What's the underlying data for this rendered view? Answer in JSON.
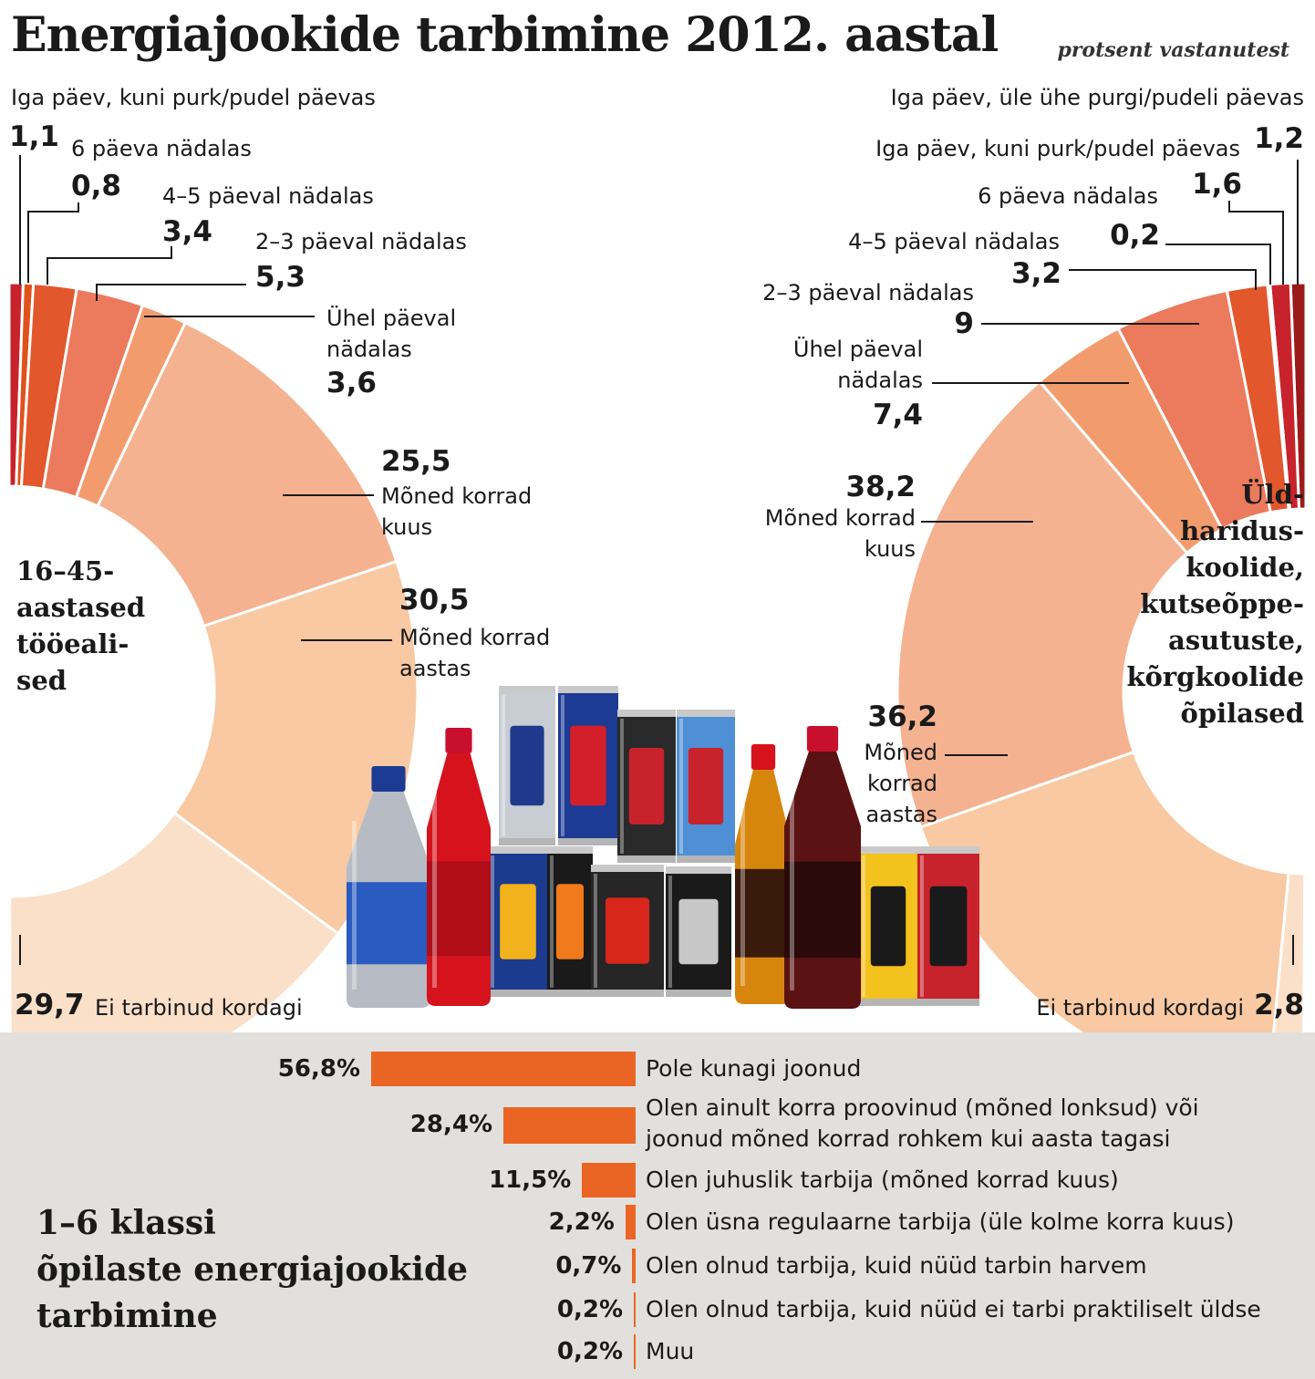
{
  "title": "Energiajookide tarbimine 2012. aastal",
  "subtitle": "protsent vastanutest",
  "colors": {
    "daily_more": "#9c1a1a",
    "daily": "#c8232c",
    "six_days": "#e0521c",
    "four_five": "#e2572c",
    "two_three": "#ec7a5c",
    "one_day": "#f29c6e",
    "few_month": "#f5b290",
    "few_year": "#f8c9a2",
    "never": "#fbe0c9",
    "bar": "#ea6524",
    "bottom_bg": "#e2e0dc"
  },
  "chart_data": [
    {
      "type": "pie",
      "group": "16–45-aastased tööealised",
      "group_label_lines": [
        "16–45-",
        "aastased",
        "tööeali-",
        "sed"
      ],
      "slices": [
        {
          "label": "Iga päev, kuni purk/pudel päevas",
          "value": 1.1,
          "value_text": "1,1"
        },
        {
          "label": "6 päeva nädalas",
          "value": 0.8,
          "value_text": "0,8"
        },
        {
          "label": "4–5 päeval nädalas",
          "value": 3.4,
          "value_text": "3,4"
        },
        {
          "label": "2–3 päeval nädalas",
          "value": 5.3,
          "value_text": "5,3"
        },
        {
          "label": "Ühel päeval nädalas",
          "label_lines": [
            "Ühel päeval",
            "nädalas"
          ],
          "value": 3.6,
          "value_text": "3,6"
        },
        {
          "label": "Mõned korrad kuus",
          "label_lines": [
            "Mõned korrad",
            "kuus"
          ],
          "value": 25.5,
          "value_text": "25,5"
        },
        {
          "label": "Mõned korrad aastas",
          "label_lines": [
            "Mõned korrad",
            "aastas"
          ],
          "value": 30.5,
          "value_text": "30,5"
        },
        {
          "label": "Ei tarbinud kordagi",
          "value": 29.7,
          "value_text": "29,7"
        }
      ]
    },
    {
      "type": "pie",
      "group": "Üldhariduskoolide, kutseõppeasutuste, kõrgkoolide õpilased",
      "group_label_lines": [
        "Üld-",
        "haridus-",
        "koolide,",
        "kutseõppe-",
        "asutuste,",
        "kõrgkoolide",
        "õpilased"
      ],
      "slices": [
        {
          "label": "Iga päev, üle ühe purgi/pudeli päevas",
          "value": 1.2,
          "value_text": "1,2"
        },
        {
          "label": "Iga päev, kuni purk/pudel päevas",
          "value": 1.6,
          "value_text": "1,6"
        },
        {
          "label": "6 päeva nädalas",
          "value": 0.2,
          "value_text": "0,2"
        },
        {
          "label": "4–5 päeval nädalas",
          "value": 3.2,
          "value_text": "3,2"
        },
        {
          "label": "2–3 päeval nädalas",
          "value": 9,
          "value_text": "9"
        },
        {
          "label": "Ühel päeval nädalas",
          "label_lines": [
            "Ühel päeval",
            "nädalas"
          ],
          "value": 7.4,
          "value_text": "7,4"
        },
        {
          "label": "Mõned korrad kuus",
          "label_lines": [
            "Mõned korrad",
            "kuus"
          ],
          "value": 38.2,
          "value_text": "38,2"
        },
        {
          "label": "Mõned korrad aastas",
          "label_lines": [
            "Mõned",
            "korrad",
            "aastas"
          ],
          "value": 36.2,
          "value_text": "36,2"
        },
        {
          "label": "Ei tarbinud kordagi",
          "value": 2.8,
          "value_text": "2,8"
        }
      ]
    },
    {
      "type": "bar",
      "title": "1–6 klassi õpilaste energiajookide tarbimine",
      "title_lines": [
        "1–6 klassi",
        "õpilaste energiajookide",
        "tarbimine"
      ],
      "categories": [
        [
          "Pole kunagi joonud"
        ],
        [
          "Olen ainult korra proovinud (mõned lonksud) või",
          "joonud mõned korrad rohkem kui aasta tagasi"
        ],
        [
          "Olen juhuslik tarbija (mõned korrad kuus)"
        ],
        [
          "Olen üsna regulaarne tarbija (üle kolme korra kuus)"
        ],
        [
          "Olen olnud tarbija, kuid nüüd tarbin harvem"
        ],
        [
          "Olen olnud tarbija, kuid nüüd ei tarbi praktiliselt üldse"
        ],
        [
          "Muu"
        ]
      ],
      "values": [
        56.8,
        28.4,
        11.5,
        2.2,
        0.7,
        0.2,
        0.2
      ],
      "value_texts": [
        "56,8%",
        "28,4%",
        "11,5%",
        "2,2%",
        "0,7%",
        "0,2%",
        "0,2%"
      ]
    }
  ]
}
